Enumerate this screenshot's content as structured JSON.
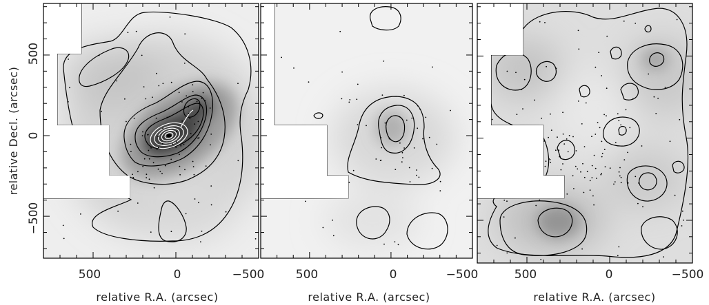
{
  "chart_data": [
    {
      "type": "contour",
      "xlabel": "relative R.A. (arcsec)",
      "ylabel": "relative Decl. (arcsec)",
      "xlim": [
        800,
        -500
      ],
      "ylim": [
        -760,
        820
      ],
      "x_ticks": [
        500,
        0,
        -500
      ],
      "y_ticks": [
        500,
        0,
        -500
      ],
      "x_tick_labels": [
        "500",
        "0",
        "−500"
      ],
      "y_tick_labels": [
        "500",
        "0",
        "−500"
      ],
      "peak": {
        "x": 0,
        "y": 0,
        "contour_levels": 11
      },
      "secondary_peak": {
        "x": -120,
        "y": 150
      },
      "point_sources": 120
    },
    {
      "type": "contour",
      "xlabel": "relative R.A. (arcsec)",
      "ylabel": "",
      "xlim": [
        800,
        -500
      ],
      "ylim": [
        -760,
        820
      ],
      "x_ticks": [
        500,
        0,
        -500
      ],
      "x_tick_labels": [
        "500",
        "0",
        "−500"
      ],
      "peak": {
        "x": 0,
        "y": 40,
        "contour_levels": 3
      },
      "point_sources": 60
    },
    {
      "type": "contour",
      "xlabel": "relative R.A. (arcsec)",
      "ylabel": "",
      "xlim": [
        800,
        -500
      ],
      "ylim": [
        -760,
        820
      ],
      "x_ticks": [
        500,
        0,
        -500
      ],
      "x_tick_labels": [
        "500",
        "0",
        "−500"
      ],
      "peaks": [
        {
          "x": 370,
          "y": -510
        },
        {
          "x": -260,
          "y": 470
        },
        {
          "x": -200,
          "y": -280
        },
        {
          "x": 240,
          "y": 400
        }
      ],
      "point_sources": 140
    }
  ]
}
